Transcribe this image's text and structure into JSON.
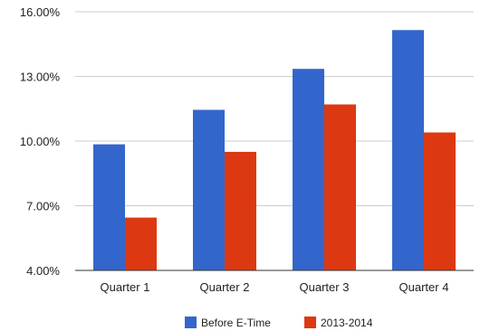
{
  "chart_data": {
    "type": "bar",
    "categories": [
      "Quarter 1",
      "Quarter 2",
      "Quarter 3",
      "Quarter 4"
    ],
    "series": [
      {
        "name": "Before E-Time",
        "values": [
          9.85,
          11.45,
          13.35,
          15.15
        ],
        "color": "#3366cc"
      },
      {
        "name": "2013-2014",
        "values": [
          6.45,
          9.5,
          11.7,
          10.4
        ],
        "color": "#dc3912"
      }
    ],
    "yticks": [
      "4.00%",
      "7.00%",
      "10.00%",
      "13.00%",
      "16.00%"
    ],
    "ytick_values": [
      4,
      7,
      10,
      13,
      16
    ],
    "ylim": [
      4,
      16
    ],
    "grid": true,
    "legend_position": "bottom",
    "gridline_color": "#cccccc",
    "baseline_color": "#333333"
  }
}
